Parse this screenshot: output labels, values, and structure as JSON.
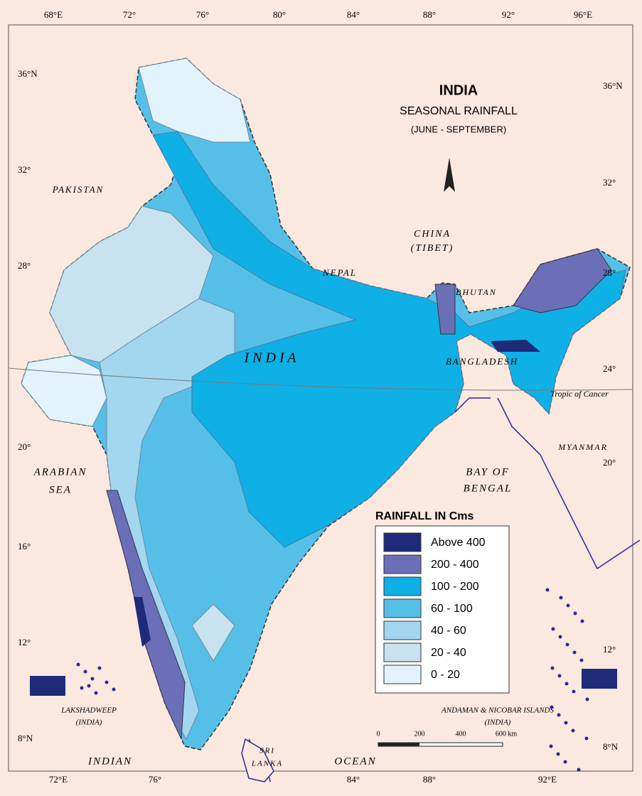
{
  "title": "INDIA",
  "subtitle": "SEASONAL RAINFALL",
  "period": "(JUNE - SEPTEMBER)",
  "top_axis": [
    "68°E",
    "72°",
    "76°",
    "80°",
    "84°",
    "88°",
    "92°",
    "96°E"
  ],
  "bottom_axis": [
    "72°E",
    "76°",
    "84°",
    "88°",
    "92°E"
  ],
  "left_axis": [
    "36°N",
    "32°",
    "28°",
    "20°",
    "16°",
    "12°",
    "8°N"
  ],
  "right_axis": [
    "36°N",
    "32°",
    "28°",
    "24°",
    "20°",
    "12°",
    "8°N"
  ],
  "places": [
    "PAKISTAN",
    "CHINA",
    "(TIBET)",
    "NEPAL",
    "BHUTAN",
    "BANGLADESH",
    "MYANMAR",
    "BAY OF",
    "BENGAL",
    "ARABIAN",
    "SEA",
    "INDIAN",
    "OCEAN",
    "SRI",
    "LANKA",
    "I   N   D   I   A",
    "Tropic of Cancer",
    "LAKSHADWEEP",
    "(INDIA)",
    "ANDAMAN & NICOBAR ISLANDS",
    "(INDIA)"
  ],
  "legend": {
    "title": "RAINFALL IN Cms",
    "items": [
      {
        "label": "Above 400",
        "color": "#1f2a78"
      },
      {
        "label": "200 - 400",
        "color": "#6b6fb8"
      },
      {
        "label": "100 - 200",
        "color": "#0fb0e6"
      },
      {
        "label": "60 - 100",
        "color": "#56bfe8"
      },
      {
        "label": "40 - 60",
        "color": "#a3d6ef"
      },
      {
        "label": "20 - 40",
        "color": "#c8e2ef"
      },
      {
        "label": "0 - 20",
        "color": "#e3f3fb"
      }
    ]
  },
  "scale": [
    "0",
    "200",
    "400",
    "600 km"
  ]
}
